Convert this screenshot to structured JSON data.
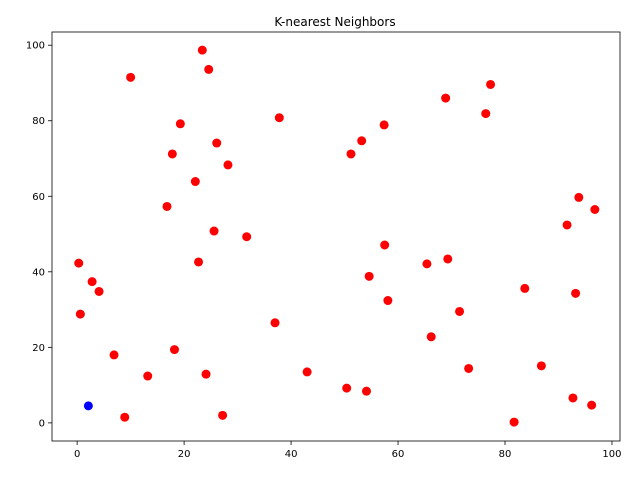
{
  "chart_data": {
    "type": "scatter",
    "title": "K-nearest Neighbors",
    "xlabel": "",
    "ylabel": "",
    "xlim": [
      -4.7,
      101.5
    ],
    "ylim": [
      -4.8,
      103.5
    ],
    "xticks": [
      "0",
      "20",
      "40",
      "60",
      "80",
      "100"
    ],
    "yticks": [
      "0",
      "20",
      "40",
      "60",
      "80",
      "100"
    ],
    "grid": false,
    "series": [
      {
        "color": "#ff0000",
        "x": [
          0.3,
          0.6,
          2.8,
          4.1,
          6.9,
          8.9,
          10.0,
          13.2,
          16.8,
          17.8,
          18.2,
          19.3,
          22.1,
          22.7,
          23.4,
          24.1,
          24.6,
          25.6,
          26.1,
          27.2,
          28.2,
          31.7,
          37.0,
          37.8,
          43.0,
          50.4,
          51.2,
          53.2,
          54.1,
          54.6,
          57.4,
          57.5,
          58.1,
          65.4,
          66.2,
          68.9,
          69.3,
          71.5,
          73.2,
          76.4,
          77.3,
          81.7,
          83.7,
          86.8,
          91.6,
          92.7,
          93.2,
          93.8,
          96.2,
          96.8
        ],
        "y": [
          42.3,
          28.8,
          37.4,
          34.8,
          18.0,
          1.5,
          91.5,
          12.4,
          57.3,
          71.2,
          19.4,
          79.2,
          63.9,
          42.6,
          98.7,
          12.9,
          93.6,
          50.8,
          74.1,
          2.0,
          68.3,
          49.3,
          26.5,
          80.8,
          13.5,
          9.2,
          71.2,
          74.7,
          8.4,
          38.8,
          78.9,
          47.1,
          32.4,
          42.1,
          22.8,
          86.0,
          43.4,
          29.5,
          14.4,
          81.9,
          89.6,
          0.2,
          35.6,
          15.1,
          52.4,
          6.6,
          34.3,
          59.7,
          4.7,
          56.5
        ]
      },
      {
        "color": "#0000ff",
        "x": [
          2.1
        ],
        "y": [
          4.5
        ]
      }
    ]
  }
}
